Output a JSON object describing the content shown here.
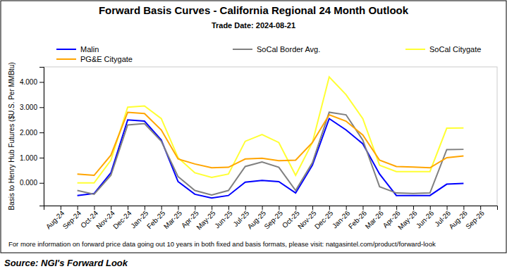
{
  "chart_data": {
    "type": "line",
    "title": "Forward Basis Curves - California Regional 24 Month Outlook",
    "subtitle": "Trade Date: 2024-08-21",
    "y_label": "Basis to Henry Hub Futures ($U.S. Per MMBtu)",
    "footnote": "For more information on forward price data going out 10 years in both fixed and basis formats, please visit: natgasintel.com/product/forward-look",
    "source": "Source: NGI's Forward Look",
    "categories": [
      "Aug-24",
      "Sep-24",
      "Oct-24",
      "Nov-24",
      "Dec-24",
      "Jan-25",
      "Feb-25",
      "Mar-25",
      "Apr-25",
      "May-25",
      "Jun-25",
      "Jul-25",
      "Aug-25",
      "Sep-25",
      "Oct-25",
      "Nov-25",
      "Dec-25",
      "Jan-26",
      "Feb-26",
      "Mar-26",
      "Apr-26",
      "May-26",
      "Jun-26",
      "Jul-26",
      "Aug-26",
      "Sep-26"
    ],
    "series": [
      {
        "name": "Malin",
        "color": "#0000ff",
        "values": [
          null,
          -0.5,
          -0.42,
          0.4,
          2.5,
          2.45,
          1.7,
          0.05,
          -0.45,
          -0.6,
          -0.5,
          0.03,
          0.1,
          0.05,
          -0.4,
          0.7,
          2.55,
          2.1,
          1.55,
          0.35,
          -0.5,
          -0.5,
          -0.5,
          -0.05,
          -0.02,
          null
        ]
      },
      {
        "name": "SoCal Border Avg.",
        "color": "#808080",
        "values": [
          null,
          -0.3,
          -0.45,
          0.3,
          2.3,
          2.35,
          1.65,
          0.25,
          -0.3,
          -0.48,
          -0.3,
          0.65,
          0.83,
          0.62,
          -0.3,
          0.8,
          2.8,
          2.7,
          1.7,
          -0.15,
          -0.4,
          -0.42,
          -0.4,
          1.32,
          1.33,
          null
        ]
      },
      {
        "name": "SoCal Citygate",
        "color": "#ffff33",
        "values": [
          null,
          0.0,
          0.0,
          0.9,
          3.0,
          3.05,
          2.55,
          1.0,
          0.4,
          0.22,
          0.35,
          1.65,
          1.92,
          1.6,
          0.3,
          1.6,
          4.2,
          3.5,
          2.55,
          0.7,
          0.45,
          0.45,
          0.45,
          2.17,
          2.18,
          null
        ]
      },
      {
        "name": "PG&E Citygate",
        "color": "#ffa500",
        "values": [
          null,
          0.35,
          0.3,
          1.1,
          2.8,
          2.75,
          2.1,
          0.95,
          0.75,
          0.6,
          0.62,
          0.95,
          0.98,
          0.88,
          0.9,
          1.6,
          2.7,
          2.45,
          1.9,
          0.9,
          0.65,
          0.63,
          0.6,
          1.0,
          1.07,
          null
        ]
      }
    ],
    "ylim": [
      -0.9,
      4.6
    ],
    "yticks": [
      {
        "value": 0,
        "label": "0.000"
      },
      {
        "value": 1,
        "label": "1.000"
      },
      {
        "value": 2,
        "label": "2.000"
      },
      {
        "value": 3,
        "label": "3.000"
      },
      {
        "value": 4,
        "label": "4.000"
      }
    ],
    "grid": false
  }
}
